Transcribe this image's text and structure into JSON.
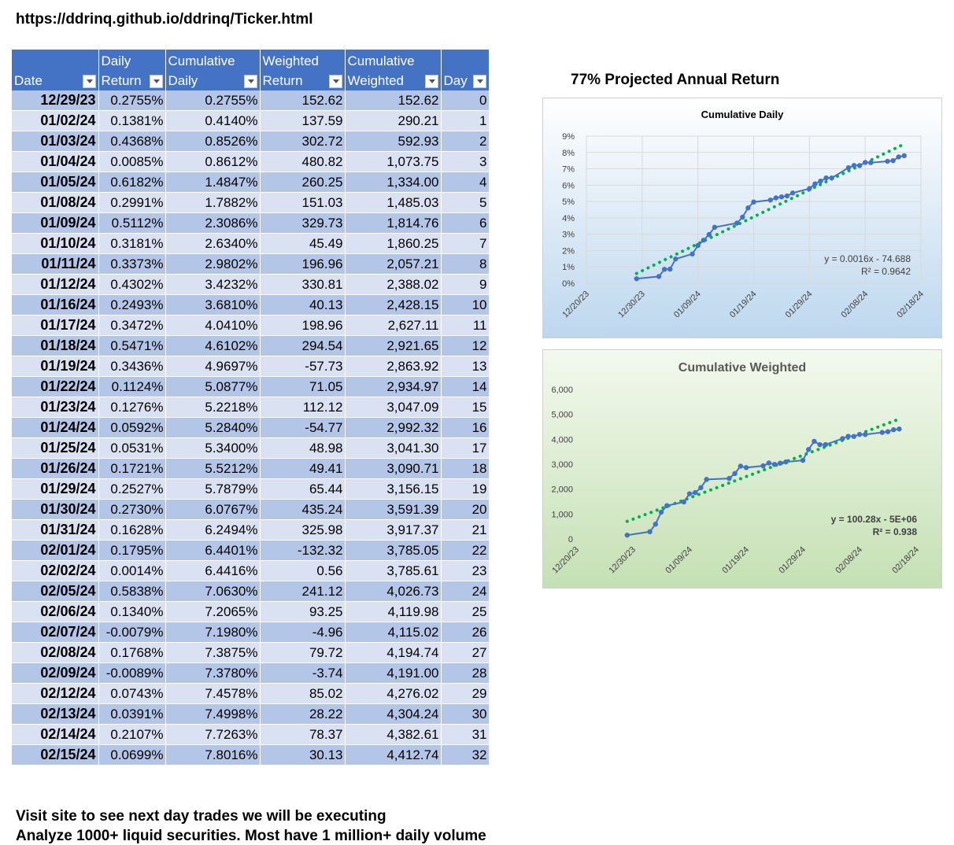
{
  "url": "https://ddrinq.github.io/ddrinq/Ticker.html",
  "table": {
    "headers": [
      {
        "line1": "",
        "line2": "Date"
      },
      {
        "line1": "Daily",
        "line2": "Return"
      },
      {
        "line1": "Cumulative",
        "line2": "Daily"
      },
      {
        "line1": "Weighted",
        "line2": "Return"
      },
      {
        "line1": "Cumulative",
        "line2": "Weighted"
      },
      {
        "line1": "",
        "line2": "Day"
      }
    ],
    "rows": [
      [
        "12/29/23",
        "0.2755%",
        "0.2755%",
        "152.62",
        "152.62",
        "0"
      ],
      [
        "01/02/24",
        "0.1381%",
        "0.4140%",
        "137.59",
        "290.21",
        "1"
      ],
      [
        "01/03/24",
        "0.4368%",
        "0.8526%",
        "302.72",
        "592.93",
        "2"
      ],
      [
        "01/04/24",
        "0.0085%",
        "0.8612%",
        "480.82",
        "1,073.75",
        "3"
      ],
      [
        "01/05/24",
        "0.6182%",
        "1.4847%",
        "260.25",
        "1,334.00",
        "4"
      ],
      [
        "01/08/24",
        "0.2991%",
        "1.7882%",
        "151.03",
        "1,485.03",
        "5"
      ],
      [
        "01/09/24",
        "0.5112%",
        "2.3086%",
        "329.73",
        "1,814.76",
        "6"
      ],
      [
        "01/10/24",
        "0.3181%",
        "2.6340%",
        "45.49",
        "1,860.25",
        "7"
      ],
      [
        "01/11/24",
        "0.3373%",
        "2.9802%",
        "196.96",
        "2,057.21",
        "8"
      ],
      [
        "01/12/24",
        "0.4302%",
        "3.4232%",
        "330.81",
        "2,388.02",
        "9"
      ],
      [
        "01/16/24",
        "0.2493%",
        "3.6810%",
        "40.13",
        "2,428.15",
        "10"
      ],
      [
        "01/17/24",
        "0.3472%",
        "4.0410%",
        "198.96",
        "2,627.11",
        "11"
      ],
      [
        "01/18/24",
        "0.5471%",
        "4.6102%",
        "294.54",
        "2,921.65",
        "12"
      ],
      [
        "01/19/24",
        "0.3436%",
        "4.9697%",
        "-57.73",
        "2,863.92",
        "13"
      ],
      [
        "01/22/24",
        "0.1124%",
        "5.0877%",
        "71.05",
        "2,934.97",
        "14"
      ],
      [
        "01/23/24",
        "0.1276%",
        "5.2218%",
        "112.12",
        "3,047.09",
        "15"
      ],
      [
        "01/24/24",
        "0.0592%",
        "5.2840%",
        "-54.77",
        "2,992.32",
        "16"
      ],
      [
        "01/25/24",
        "0.0531%",
        "5.3400%",
        "48.98",
        "3,041.30",
        "17"
      ],
      [
        "01/26/24",
        "0.1721%",
        "5.5212%",
        "49.41",
        "3,090.71",
        "18"
      ],
      [
        "01/29/24",
        "0.2527%",
        "5.7879%",
        "65.44",
        "3,156.15",
        "19"
      ],
      [
        "01/30/24",
        "0.2730%",
        "6.0767%",
        "435.24",
        "3,591.39",
        "20"
      ],
      [
        "01/31/24",
        "0.1628%",
        "6.2494%",
        "325.98",
        "3,917.37",
        "21"
      ],
      [
        "02/01/24",
        "0.1795%",
        "6.4401%",
        "-132.32",
        "3,785.05",
        "22"
      ],
      [
        "02/02/24",
        "0.0014%",
        "6.4416%",
        "0.56",
        "3,785.61",
        "23"
      ],
      [
        "02/05/24",
        "0.5838%",
        "7.0630%",
        "241.12",
        "4,026.73",
        "24"
      ],
      [
        "02/06/24",
        "0.1340%",
        "7.2065%",
        "93.25",
        "4,119.98",
        "25"
      ],
      [
        "02/07/24",
        "-0.0079%",
        "7.1980%",
        "-4.96",
        "4,115.02",
        "26"
      ],
      [
        "02/08/24",
        "0.1768%",
        "7.3875%",
        "79.72",
        "4,194.74",
        "27"
      ],
      [
        "02/09/24",
        "-0.0089%",
        "7.3780%",
        "-3.74",
        "4,191.00",
        "28"
      ],
      [
        "02/12/24",
        "0.0743%",
        "7.4578%",
        "85.02",
        "4,276.02",
        "29"
      ],
      [
        "02/13/24",
        "0.0391%",
        "7.4998%",
        "28.22",
        "4,304.24",
        "30"
      ],
      [
        "02/14/24",
        "0.2107%",
        "7.7263%",
        "78.37",
        "4,382.61",
        "31"
      ],
      [
        "02/15/24",
        "0.0699%",
        "7.8016%",
        "30.13",
        "4,412.74",
        "32"
      ]
    ]
  },
  "projected_title": "77% Projected Annual Return",
  "chart_data": [
    {
      "type": "line",
      "title": "Cumulative Daily",
      "x": [
        "2023-12-29",
        "2024-01-02",
        "2024-01-03",
        "2024-01-04",
        "2024-01-05",
        "2024-01-08",
        "2024-01-09",
        "2024-01-10",
        "2024-01-11",
        "2024-01-12",
        "2024-01-16",
        "2024-01-17",
        "2024-01-18",
        "2024-01-19",
        "2024-01-22",
        "2024-01-23",
        "2024-01-24",
        "2024-01-25",
        "2024-01-26",
        "2024-01-29",
        "2024-01-30",
        "2024-01-31",
        "2024-02-01",
        "2024-02-02",
        "2024-02-05",
        "2024-02-06",
        "2024-02-07",
        "2024-02-08",
        "2024-02-09",
        "2024-02-12",
        "2024-02-13",
        "2024-02-14",
        "2024-02-15"
      ],
      "series": [
        {
          "values": [
            0.2755,
            0.414,
            0.8526,
            0.8612,
            1.4847,
            1.7882,
            2.3086,
            2.634,
            2.9802,
            3.4232,
            3.681,
            4.041,
            4.6102,
            4.9697,
            5.0877,
            5.2218,
            5.284,
            5.34,
            5.5212,
            5.7879,
            6.0767,
            6.2494,
            6.4401,
            6.4416,
            7.063,
            7.2065,
            7.198,
            7.3875,
            7.378,
            7.4578,
            7.4998,
            7.7263,
            7.8016
          ]
        }
      ],
      "x_ticks": [
        "12/20/23",
        "12/30/23",
        "01/09/24",
        "01/19/24",
        "01/29/24",
        "02/08/24",
        "02/18/24"
      ],
      "y_ticks": [
        "0%",
        "1%",
        "2%",
        "3%",
        "4%",
        "5%",
        "6%",
        "7%",
        "8%",
        "9%"
      ],
      "ylim": [
        0,
        9
      ],
      "xlim": [
        "2023-12-20",
        "2024-02-18"
      ],
      "trendline": {
        "type": "linear",
        "equation": "y = 0.0016x - 74.688",
        "r2": "R² = 0.9642"
      },
      "grid": true,
      "colors": {
        "line": "#4472c4",
        "trend": "#00b050",
        "bg_top": "#ffffff",
        "bg_bottom": "#bdd7ee"
      }
    },
    {
      "type": "line",
      "title": "Cumulative Weighted",
      "x": [
        "2023-12-29",
        "2024-01-02",
        "2024-01-03",
        "2024-01-04",
        "2024-01-05",
        "2024-01-08",
        "2024-01-09",
        "2024-01-10",
        "2024-01-11",
        "2024-01-12",
        "2024-01-16",
        "2024-01-17",
        "2024-01-18",
        "2024-01-19",
        "2024-01-22",
        "2024-01-23",
        "2024-01-24",
        "2024-01-25",
        "2024-01-26",
        "2024-01-29",
        "2024-01-30",
        "2024-01-31",
        "2024-02-01",
        "2024-02-02",
        "2024-02-05",
        "2024-02-06",
        "2024-02-07",
        "2024-02-08",
        "2024-02-09",
        "2024-02-12",
        "2024-02-13",
        "2024-02-14",
        "2024-02-15"
      ],
      "series": [
        {
          "values": [
            152.62,
            290.21,
            592.93,
            1073.75,
            1334.0,
            1485.03,
            1814.76,
            1860.25,
            2057.21,
            2388.02,
            2428.15,
            2627.11,
            2921.65,
            2863.92,
            2934.97,
            3047.09,
            2992.32,
            3041.3,
            3090.71,
            3156.15,
            3591.39,
            3917.37,
            3785.05,
            3785.61,
            4026.73,
            4119.98,
            4115.02,
            4194.74,
            4191.0,
            4276.02,
            4304.24,
            4382.61,
            4412.74
          ]
        }
      ],
      "x_ticks": [
        "12/20/23",
        "12/30/23",
        "01/09/24",
        "01/19/24",
        "01/29/24",
        "02/08/24",
        "02/18/24"
      ],
      "y_ticks": [
        "0",
        "1,000",
        "2,000",
        "3,000",
        "4,000",
        "5,000",
        "6,000"
      ],
      "ylim": [
        0,
        6000
      ],
      "xlim": [
        "2023-12-20",
        "2024-02-18"
      ],
      "trendline": {
        "type": "linear",
        "equation": "y = 100.28x - 5E+06",
        "r2": "R² = 0.938"
      },
      "grid": false,
      "colors": {
        "line": "#4472c4",
        "trend": "#00b050",
        "bg_top": "#f3f9ee",
        "bg_bottom": "#c5e0b4"
      }
    }
  ],
  "footer": {
    "line1": "Visit site to see next day trades we will be executing",
    "line2": "Analyze 1000+ liquid securities.  Most have 1 million+ daily volume"
  }
}
